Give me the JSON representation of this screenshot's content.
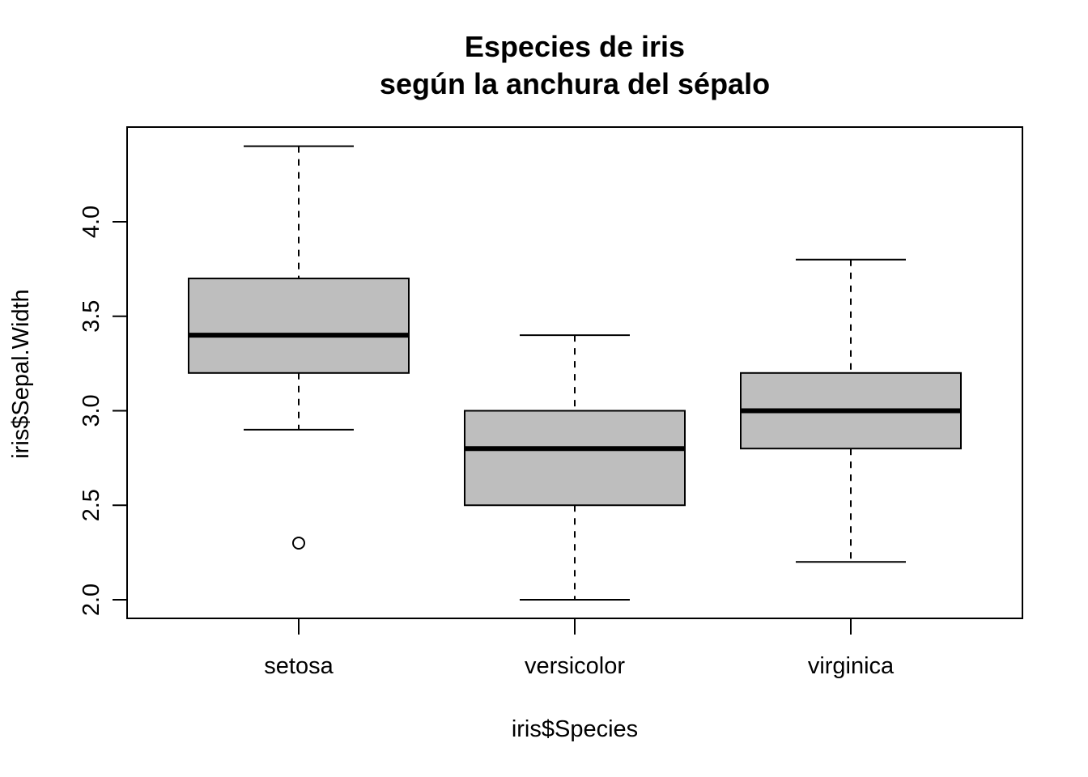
{
  "chart_data": {
    "type": "boxplot",
    "title": "Especies de iris",
    "subtitle": "según la anchura del sépalo",
    "xlabel": "iris$Species",
    "ylabel": "iris$Sepal.Width",
    "ylim": [
      1.9,
      4.5
    ],
    "yticks": [
      "2.0",
      "2.5",
      "3.0",
      "3.5",
      "4.0"
    ],
    "categories": [
      "setosa",
      "versicolor",
      "virginica"
    ],
    "boxes": [
      {
        "name": "setosa",
        "whisker_low": 2.9,
        "q1": 3.2,
        "median": 3.4,
        "q3": 3.7,
        "whisker_high": 4.4,
        "outliers": [
          2.3
        ]
      },
      {
        "name": "versicolor",
        "whisker_low": 2.0,
        "q1": 2.5,
        "median": 2.8,
        "q3": 3.0,
        "whisker_high": 3.4,
        "outliers": []
      },
      {
        "name": "virginica",
        "whisker_low": 2.2,
        "q1": 2.8,
        "median": 3.0,
        "q3": 3.2,
        "whisker_high": 3.8,
        "outliers": []
      }
    ],
    "box_fill": "#bebebe",
    "grid": false
  }
}
